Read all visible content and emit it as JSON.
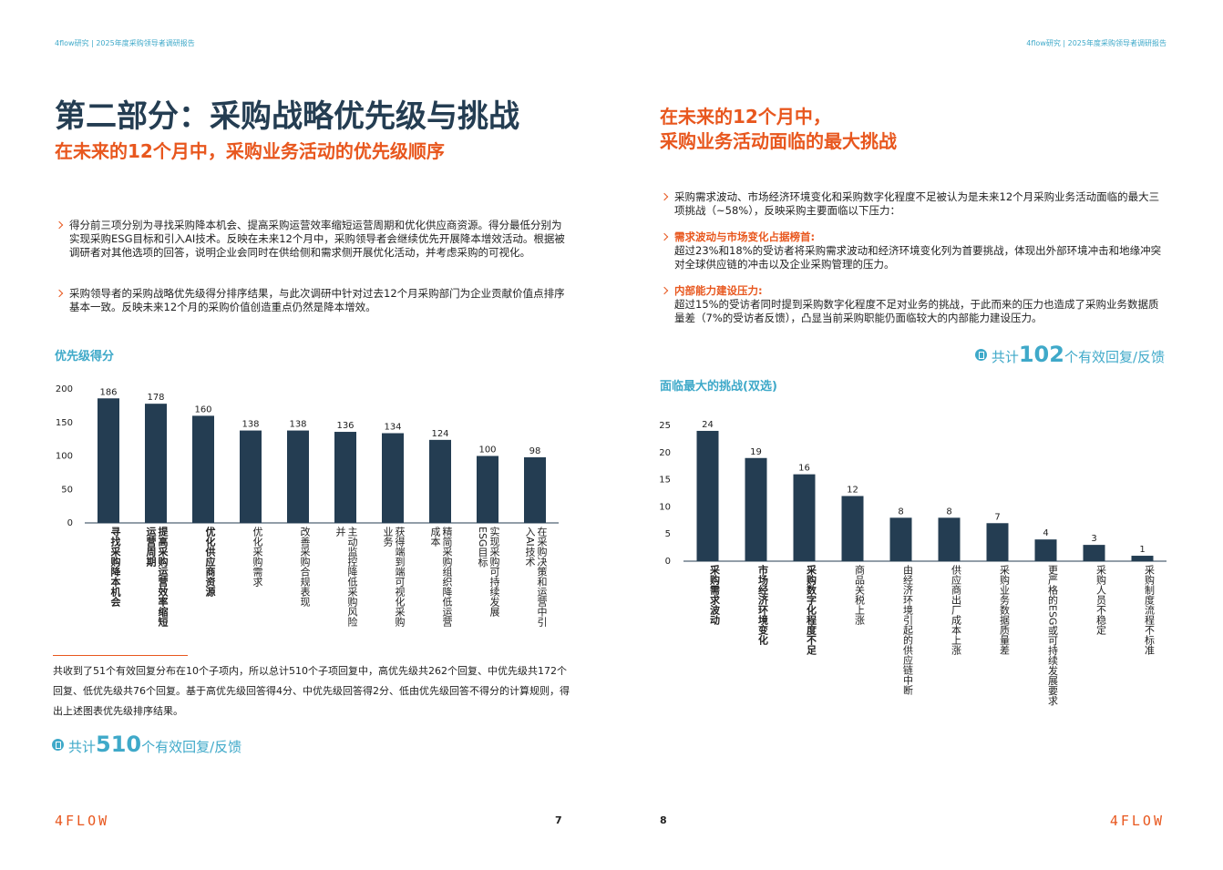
{
  "left": {
    "header": "4flow研究 | 2025年度采购领导者调研报告",
    "title": "第二部分：采购战略优先级与挑战",
    "subtitle": "在未来的12个月中，采购业务活动的优先级顺序",
    "bullets": [
      "得分前三项分别为寻找采购降本机会、提高采购运营效率缩短运营周期和优化供应商资源。得分最低分别为实现采购ESG目标和引入AI技术。反映在未来12个月中，采购领导者会继续优先开展降本增效活动。根据被调研者对其他选项的回答，说明企业会同时在供给侧和需求侧开展优化活动，并考虑采购的可视化。",
      "采购领导者的采购战略优先级得分排序结果，与此次调研中针对过去12个月采购部门为企业贡献价值点排序基本一致。反映未来12个月的采购价值创造重点仍然是降本增效。"
    ],
    "note": "共收到了51个有效回复分布在10个子项内，所以总计510个子项回复中，高优先级共262个回复、中优先级共172个回复、低优先级共76个回复。基于高优先级回答得4分、中优先级回答得2分、低由优先级回答不得分的计算规则，得出上述图表优先级排序结果。",
    "count": {
      "prefix": "共计",
      "number": 510,
      "suffix": "个有效回复/反馈"
    },
    "logo": "4FLOW",
    "page_number": 7
  },
  "right": {
    "header": "4flow研究 | 2025年度采购领导者调研报告",
    "title": [
      "在未来的12个月中，",
      "采购业务活动面临的最大挑战"
    ],
    "bullets": [
      {
        "text": "采购需求波动、市场经济环境变化和采购数字化程度不足被认为是未来12个月采购业务活动面临的最大三项挑战（~58%），反映采购主要面临以下压力："
      },
      {
        "heading": "需求波动与市场变化占据榜首:",
        "text": "超过23%和18%的受访者将采购需求波动和经济环境变化列为首要挑战，体现出外部环境冲击和地缘冲突对全球供应链的冲击以及企业采购管理的压力。"
      },
      {
        "heading": "内部能力建设压力:",
        "text": "超过15%的受访者同时提到采购数字化程度不足对业务的挑战，于此而来的压力也造成了采购业务数据质量差（7%的受访者反馈），凸显当前采购职能仍面临较大的内部能力建设压力。"
      }
    ],
    "count": {
      "prefix": "共计",
      "number": 102,
      "suffix": "个有效回复/反馈"
    },
    "logo": "4FLOW",
    "page_number": 8
  },
  "chart_data": [
    {
      "type": "bar",
      "title": "优先级得分",
      "categories": [
        "寻找采购降本机会",
        "提高采购运营效率缩短运营周期",
        "优化供应商资源",
        "优化采购需求",
        "改善采购合规表现",
        "主动监控降低采购风险并",
        "获得端到端可视化采购业务",
        "精简采购组织降低运营成本",
        "实现采购可持续发展ESG目标",
        "在采购决策和运营中引入AI技术"
      ],
      "values": [
        186,
        178,
        160,
        138,
        138,
        136,
        134,
        124,
        100,
        98
      ],
      "color": "#243d52",
      "ylim": [
        0,
        200
      ],
      "yticks": [
        0,
        50,
        100,
        150,
        200
      ]
    },
    {
      "type": "bar",
      "title": "面临最大的挑战(双选)",
      "categories": [
        "采购需求波动",
        "市场经济环境变化",
        "采购数字化程度不足",
        "商品关税上涨",
        "由经济环境引起的供应链中断",
        "供应商出厂成本上涨",
        "采购业务数据质量差",
        "更严格的ESG或可持续发展要求",
        "采购人员不稳定",
        "采购制度流程不标准"
      ],
      "values": [
        24,
        19,
        16,
        12,
        8,
        8,
        7,
        4,
        3,
        1
      ],
      "color": "#243d52",
      "ylim": [
        0,
        25
      ],
      "yticks": [
        0,
        5,
        10,
        15,
        20,
        25
      ]
    }
  ]
}
